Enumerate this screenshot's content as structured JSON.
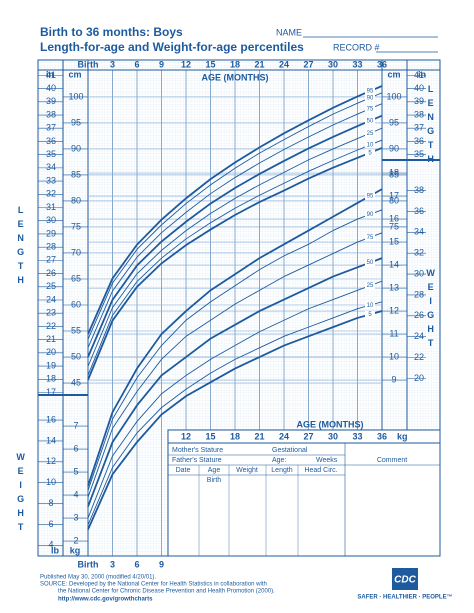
{
  "header": {
    "title": "Birth to 36 months: Boys",
    "subtitle": "Length-for-age and Weight-for-age percentiles",
    "name_label": "NAME",
    "record_label": "RECORD #"
  },
  "chart_data": {
    "type": "line",
    "x_axis_label": "AGE (MONTHS)",
    "y_label": "LENGTH",
    "y2_label": "WEIGHT",
    "unit_in": "in",
    "unit_cm": "cm",
    "unit_kg": "kg",
    "unit_lb": "lb",
    "x": [
      0,
      3,
      6,
      9,
      12,
      15,
      18,
      21,
      24,
      27,
      30,
      33,
      36
    ],
    "xlim": [
      0,
      36
    ],
    "xticks": [
      {
        "value": 0,
        "label": "Birth"
      },
      3,
      6,
      9,
      12,
      15,
      18,
      21,
      24,
      27,
      30,
      33,
      36
    ],
    "xticks_lower": [
      12,
      15,
      18,
      21,
      24,
      27,
      30,
      33,
      36
    ],
    "xticks_bottom": [
      {
        "value": 0,
        "label": "Birth"
      },
      3,
      6,
      9
    ],
    "ylim": [
      12.9,
      104.6
    ],
    "yticks": [
      45,
      50,
      55,
      60,
      65,
      70,
      75,
      80,
      85,
      90,
      95,
      100
    ],
    "yticks_right": [
      75,
      80,
      85,
      90,
      95,
      100
    ],
    "inlim": [
      5.08,
      41.18
    ],
    "in_ticks": [
      17,
      18,
      19,
      20,
      21,
      22,
      23,
      24,
      25,
      26,
      27,
      28,
      29,
      30,
      31,
      32,
      33,
      34,
      35,
      36,
      37,
      38,
      39,
      40,
      41
    ],
    "in_ticks_right": [
      35,
      36,
      37,
      38,
      39,
      40,
      41
    ],
    "y2lim": [
      1.61,
      22.35
    ],
    "y2ticks": [
      9,
      10,
      11,
      12,
      13,
      14,
      15,
      16,
      17,
      18
    ],
    "y2ticks_left": [
      2,
      3,
      4,
      5,
      6,
      7
    ],
    "lblim": [
      3.55,
      49.27
    ],
    "lb_ticks": [
      20,
      22,
      24,
      26,
      28,
      30,
      32,
      34,
      36,
      38
    ],
    "lb_ticks_left": [
      4,
      6,
      8,
      10,
      12,
      14,
      16
    ],
    "grid": true,
    "series": [
      {
        "name": "95",
        "color": "#1d5a9e",
        "values": [
          54.4,
          65.1,
          71.6,
          76.4,
          80.5,
          84.2,
          87.4,
          90.3,
          93,
          95.5,
          97.9,
          100.1,
          102.1
        ]
      },
      {
        "name": "90",
        "color": "#1d5a9e",
        "values": [
          53.4,
          64.2,
          70.7,
          75.4,
          79.5,
          83.1,
          86.3,
          89.2,
          91.8,
          94.3,
          96.7,
          98.8,
          100.8
        ]
      },
      {
        "name": "75",
        "color": "#1d5a9e",
        "values": [
          51.8,
          62.7,
          69.2,
          73.9,
          77.8,
          81.4,
          84.5,
          87.3,
          89.9,
          92.3,
          94.6,
          96.7,
          98.7
        ]
      },
      {
        "name": "50",
        "color": "#1d5a9e",
        "values": [
          50,
          61,
          67.6,
          72.2,
          76,
          79.5,
          82.5,
          85.2,
          87.7,
          90.1,
          92.3,
          94.4,
          96.4
        ]
      },
      {
        "name": "25",
        "color": "#1d5a9e",
        "values": [
          48.2,
          59.5,
          66,
          70.5,
          74.3,
          77.6,
          80.5,
          83.1,
          85.5,
          87.9,
          90,
          92,
          94
        ]
      },
      {
        "name": "10",
        "color": "#1d5a9e",
        "values": [
          46.5,
          58,
          64.5,
          69,
          72.7,
          75.8,
          78.6,
          81.1,
          83.4,
          85.7,
          87.8,
          89.8,
          91.7
        ]
      },
      {
        "name": "5",
        "color": "#1d5a9e",
        "values": [
          45.6,
          57,
          63.5,
          68,
          71.5,
          74.5,
          77.3,
          79.8,
          82,
          84.3,
          86.4,
          88.3,
          90.2
        ]
      },
      {
        "name": "95",
        "color": "#1d5a9e",
        "axis": "y2",
        "values": [
          4.4,
          7.6,
          9.5,
          11.0,
          12.0,
          12.9,
          13.6,
          14.3,
          14.9,
          15.5,
          16.1,
          16.7,
          17.3
        ]
      },
      {
        "name": "90",
        "color": "#1d5a9e",
        "axis": "y2",
        "values": [
          4.2,
          7.3,
          9.1,
          10.5,
          11.6,
          12.4,
          13.1,
          13.8,
          14.4,
          14.9,
          15.5,
          16.0,
          16.4
        ]
      },
      {
        "name": "75",
        "color": "#1d5a9e",
        "axis": "y2",
        "values": [
          3.9,
          6.9,
          8.5,
          9.9,
          10.9,
          11.6,
          12.3,
          12.9,
          13.5,
          14.0,
          14.5,
          15.0,
          15.4
        ]
      },
      {
        "name": "50",
        "color": "#1d5a9e",
        "axis": "y2",
        "values": [
          3.5,
          6.3,
          7.9,
          9.2,
          10.0,
          10.8,
          11.4,
          12.0,
          12.5,
          13.0,
          13.5,
          13.9,
          14.3
        ]
      },
      {
        "name": "25",
        "color": "#1d5a9e",
        "axis": "y2",
        "values": [
          3.0,
          5.7,
          7.2,
          8.4,
          9.2,
          9.9,
          10.5,
          11.1,
          11.6,
          12.1,
          12.5,
          12.9,
          13.3
        ]
      },
      {
        "name": "10",
        "color": "#1d5a9e",
        "axis": "y2",
        "values": [
          2.7,
          5.2,
          6.7,
          7.8,
          8.6,
          9.3,
          9.9,
          10.4,
          10.9,
          11.3,
          11.7,
          12.1,
          12.4
        ]
      },
      {
        "name": "5",
        "color": "#1d5a9e",
        "axis": "y2",
        "values": [
          2.5,
          4.9,
          6.3,
          7.5,
          8.3,
          8.9,
          9.5,
          10.0,
          10.5,
          10.9,
          11.3,
          11.7,
          12.0
        ]
      }
    ]
  },
  "form": {
    "mother": "Mother's Stature",
    "gestational": "Gestational",
    "father": "Father's Stature",
    "age": "Age:",
    "weeks": "Weeks",
    "comment": "Comment",
    "columns": [
      "Date",
      "Age",
      "Weight",
      "Length",
      "Head Circ."
    ],
    "birth": "Birth"
  },
  "footer": {
    "published": "Published May 30, 2000 (modified 4/20/01).",
    "source": "SOURCE: Developed by the National Center for Health Statistics in collaboration with",
    "source2": "the National Center for Chronic Disease Prevention and Health Promotion (2000).",
    "url": "http://www.cdc.gov/growthcharts",
    "logo": "CDC",
    "tagline": "SAFER · HEALTHIER · PEOPLE™"
  }
}
